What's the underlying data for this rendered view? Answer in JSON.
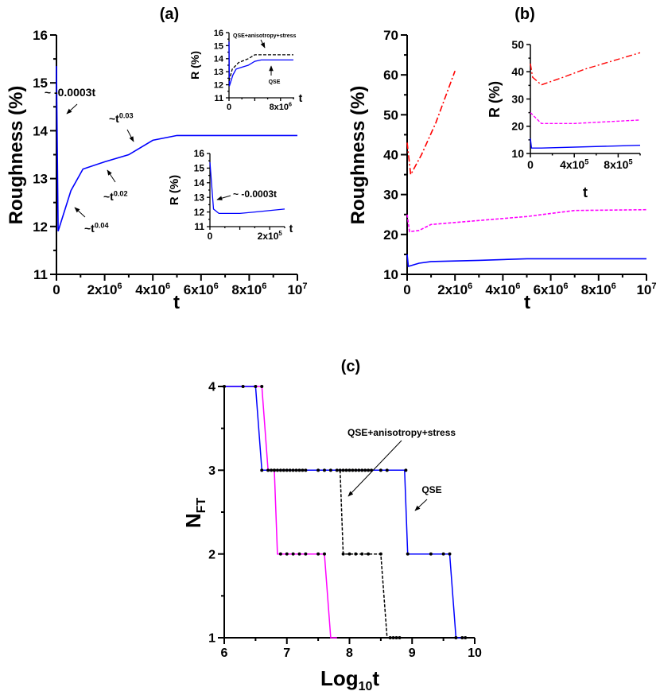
{
  "colors": {
    "qse": "#0000ff",
    "magenta": "#ff00ff",
    "red": "#ff0000",
    "black": "#000000"
  },
  "chart_data": [
    {
      "id": "a",
      "panel_label": "(a)",
      "type": "line",
      "xlabel": "t",
      "ylabel": "Roughness (%)",
      "xlim": [
        0,
        10000000
      ],
      "ylim": [
        11,
        16
      ],
      "yticks": [
        "11",
        "12",
        "13",
        "14",
        "15",
        "16"
      ],
      "xticks": [
        {
          "v": 0,
          "b": "0",
          "e": ""
        },
        {
          "v": 2000000,
          "b": "2x10",
          "e": "6"
        },
        {
          "v": 4000000,
          "b": "4x10",
          "e": "6"
        },
        {
          "v": 6000000,
          "b": "6x10",
          "e": "6"
        },
        {
          "v": 8000000,
          "b": "8x10",
          "e": "6"
        },
        {
          "v": 10000000,
          "b": "10",
          "e": "7"
        }
      ],
      "series": [
        {
          "name": "QSE",
          "color": "#0000ff",
          "dash": "",
          "x": [
            0,
            70000,
            600000,
            1100000,
            2000000,
            3000000,
            4000000,
            5000000,
            10000000
          ],
          "y": [
            15.35,
            11.9,
            12.75,
            13.2,
            13.35,
            13.5,
            13.8,
            13.9,
            13.9
          ]
        }
      ],
      "annotations": [
        {
          "text": "~ -0.0003t",
          "sup": ""
        },
        {
          "text": "~t",
          "sup": "0.03"
        },
        {
          "text": "~t",
          "sup": "0.02"
        },
        {
          "text": "~t",
          "sup": "0.04"
        }
      ],
      "insets": [
        {
          "id": "a-inset-top",
          "type": "line",
          "xlabel": "t",
          "ylabel": "R (%)",
          "xlim": [
            0,
            10000000
          ],
          "ylim": [
            11,
            16
          ],
          "yticks": [
            "11",
            "12",
            "13",
            "14",
            "15",
            "16"
          ],
          "xticks": [
            {
              "v": 0,
              "b": "0",
              "e": ""
            },
            {
              "v": 8000000,
              "b": "8x10",
              "e": "6"
            }
          ],
          "series": [
            {
              "name": "QSE",
              "color": "#0000ff",
              "dash": "",
              "x": [
                0,
                60000,
                600000,
                1100000,
                2000000,
                3000000,
                4000000,
                5000000,
                10000000
              ],
              "y": [
                15.3,
                11.9,
                12.75,
                13.2,
                13.35,
                13.5,
                13.8,
                13.9,
                13.9
              ]
            },
            {
              "name": "QSE+anisotropy+stress",
              "color": "#000000",
              "dash": "4,2",
              "x": [
                0,
                500000,
                1500000,
                3000000,
                4000000,
                10000000
              ],
              "y": [
                12.3,
                13.2,
                13.7,
                14.0,
                14.3,
                14.3
              ]
            }
          ],
          "annotations": [
            {
              "text": "QSE+anisotropy+stress",
              "sup": ""
            },
            {
              "text": "QSE",
              "sup": ""
            }
          ]
        },
        {
          "id": "a-inset-bottom",
          "type": "line",
          "xlabel": "t",
          "ylabel": "R (%)",
          "xlim": [
            0,
            250000
          ],
          "ylim": [
            11,
            16
          ],
          "yticks": [
            "11",
            "12",
            "13",
            "14",
            "15",
            "16"
          ],
          "xticks": [
            {
              "v": 0,
              "b": "0",
              "e": ""
            },
            {
              "v": 200000,
              "b": "2x10",
              "e": "5"
            }
          ],
          "series": [
            {
              "name": "QSE",
              "color": "#0000ff",
              "dash": "",
              "x": [
                0,
                12000,
                30000,
                100000,
                150000,
                250000
              ],
              "y": [
                15.4,
                12.2,
                11.9,
                11.9,
                12.0,
                12.2
              ]
            }
          ],
          "annotations": [
            {
              "text": "~ -0.0003t",
              "sup": ""
            }
          ]
        }
      ]
    },
    {
      "id": "b",
      "panel_label": "(b)",
      "type": "line",
      "xlabel": "t",
      "ylabel": "Roughness (%)",
      "xlim": [
        0,
        10000000
      ],
      "ylim": [
        10,
        70
      ],
      "yticks": [
        "10",
        "20",
        "30",
        "40",
        "50",
        "60",
        "70"
      ],
      "xticks": [
        {
          "v": 0,
          "b": "0",
          "e": ""
        },
        {
          "v": 2000000,
          "b": "2x10",
          "e": "6"
        },
        {
          "v": 4000000,
          "b": "4x10",
          "e": "6"
        },
        {
          "v": 6000000,
          "b": "6x10",
          "e": "6"
        },
        {
          "v": 8000000,
          "b": "8x10",
          "e": "6"
        },
        {
          "v": 10000000,
          "b": "10",
          "e": "7"
        }
      ],
      "series": [
        {
          "name": "blue",
          "color": "#0000ff",
          "dash": "",
          "x": [
            0,
            50000,
            500000,
            1000000,
            3000000,
            5000000,
            10000000
          ],
          "y": [
            15,
            12,
            12.8,
            13.2,
            13.5,
            13.9,
            13.9
          ]
        },
        {
          "name": "magenta",
          "color": "#ff00ff",
          "dash": "4,2",
          "x": [
            0,
            100000,
            500000,
            1000000,
            3000000,
            5000000,
            7000000,
            10000000
          ],
          "y": [
            25,
            20.7,
            21,
            22.5,
            23.5,
            24.5,
            26,
            26.2
          ]
        },
        {
          "name": "red",
          "color": "#ff0000",
          "dash": "8,3,2,3",
          "x": [
            0,
            150000,
            600000,
            1200000,
            2000000
          ],
          "y": [
            43,
            35,
            40,
            48,
            61
          ]
        }
      ],
      "insets": [
        {
          "id": "b-inset",
          "type": "line",
          "xlabel": "t",
          "ylabel": "R (%)",
          "xlim": [
            0,
            1000000
          ],
          "ylim": [
            10,
            50
          ],
          "yticks": [
            "10",
            "20",
            "30",
            "40",
            "50"
          ],
          "xticks": [
            {
              "v": 0,
              "b": "0",
              "e": ""
            },
            {
              "v": 400000,
              "b": "4x10",
              "e": "5"
            },
            {
              "v": 800000,
              "b": "8x10",
              "e": "5"
            }
          ],
          "series": [
            {
              "name": "blue",
              "color": "#0000ff",
              "dash": "",
              "x": [
                0,
                10000,
                100000,
                1000000
              ],
              "y": [
                15.5,
                12,
                12,
                13
              ]
            },
            {
              "name": "magenta",
              "color": "#ff00ff",
              "dash": "4,2",
              "x": [
                0,
                100000,
                400000,
                1000000
              ],
              "y": [
                25,
                21,
                21,
                22.3
              ]
            },
            {
              "name": "red",
              "color": "#ff0000",
              "dash": "8,3,2,3",
              "x": [
                0,
                20000,
                100000,
                300000,
                500000,
                1000000
              ],
              "y": [
                43,
                38,
                35.2,
                38,
                41,
                47
              ]
            }
          ],
          "annotations": []
        }
      ]
    },
    {
      "id": "c",
      "panel_label": "(c)",
      "type": "line",
      "xlabel": "Log",
      "xlabel_sub": "10",
      "xlabel_tail": "t",
      "ylabel": "N",
      "ylabel_sub": "FT",
      "xlim": [
        6,
        10
      ],
      "ylim": [
        1,
        4
      ],
      "yticks": [
        "1",
        "2",
        "3",
        "4"
      ],
      "xticks": [
        {
          "v": 6,
          "b": "6",
          "e": ""
        },
        {
          "v": 7,
          "b": "7",
          "e": ""
        },
        {
          "v": 8,
          "b": "8",
          "e": ""
        },
        {
          "v": 9,
          "b": "9",
          "e": ""
        },
        {
          "v": 10,
          "b": "10",
          "e": ""
        }
      ],
      "series": [
        {
          "name": "magenta",
          "color": "#ff00ff",
          "dash": "",
          "x": [
            6,
            6.6,
            6.7,
            6.8,
            6.85,
            7.6,
            7.7,
            7.8
          ],
          "y": [
            4,
            4,
            3,
            3,
            2,
            2,
            1,
            1
          ]
        },
        {
          "name": "QSE",
          "color": "#0000ff",
          "dash": "",
          "x": [
            6,
            6.5,
            6.6,
            8.88,
            8.93,
            9.6,
            9.7,
            9.85
          ],
          "y": [
            4,
            4,
            3,
            3,
            2,
            2,
            1,
            1
          ]
        },
        {
          "name": "QSE+anisotropy+stress",
          "color": "#000000",
          "dash": "4,2",
          "x": [
            7.85,
            7.9,
            8.5,
            8.6,
            9.0
          ],
          "y": [
            3,
            2,
            2,
            1,
            1
          ]
        }
      ],
      "markers": {
        "x": [
          6,
          6.3,
          6.5,
          6.6,
          6.6,
          6.7,
          6.8,
          6.85,
          6.9,
          6.95,
          7.0,
          7.05,
          7.1,
          7.15,
          7.2,
          7.25,
          7.3,
          7.5,
          7.6,
          7.7,
          7.8,
          7.85,
          7.9,
          7.95,
          8.0,
          8.05,
          8.1,
          8.15,
          8.2,
          8.25,
          8.3,
          8.35,
          8.5,
          8.6,
          8.65,
          8.7,
          8.75,
          8.8,
          8.9,
          8.93,
          9.3,
          9.5,
          9.6,
          9.7,
          9.8,
          9.85,
          6.75,
          6.8,
          6.9,
          7.0,
          7.1,
          7.2,
          7.3,
          7.5,
          7.6,
          7.9,
          8.0,
          8.1,
          8.2,
          8.3,
          8.5
        ],
        "y": [
          4,
          4,
          4,
          4,
          3,
          3,
          3,
          3,
          3,
          3,
          3,
          3,
          3,
          3,
          3,
          3,
          3,
          3,
          3,
          3,
          3,
          3,
          3,
          3,
          3,
          3,
          3,
          3,
          3,
          3,
          3,
          3,
          3,
          3,
          1,
          1,
          1,
          1,
          3,
          2,
          2,
          2,
          2,
          1,
          1,
          1,
          3,
          3,
          2,
          2,
          2,
          2,
          2,
          2,
          2,
          2,
          2,
          2,
          2,
          2,
          2
        ]
      },
      "annotations": [
        {
          "text": "QSE+anisotropy+stress",
          "sup": ""
        },
        {
          "text": "QSE",
          "sup": ""
        }
      ]
    }
  ]
}
